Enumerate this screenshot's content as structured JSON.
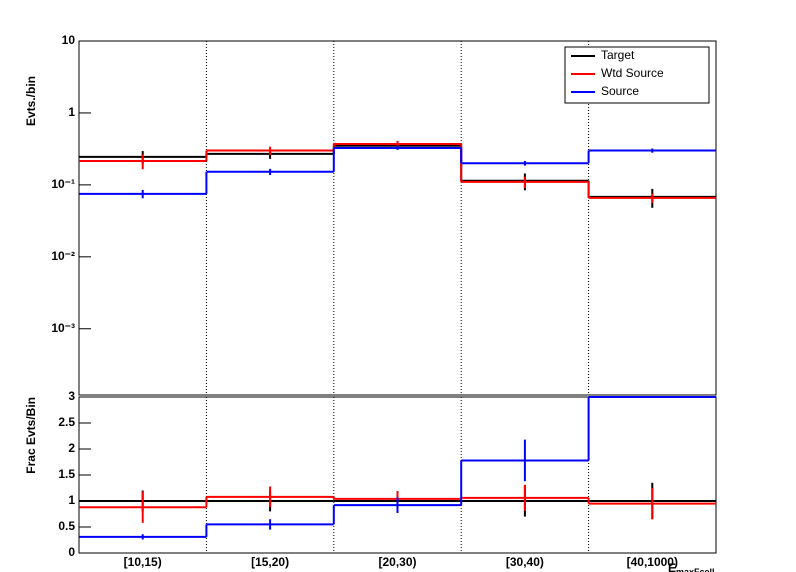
{
  "chart_data": [
    {
      "type": "step",
      "ylabel": "Evts./bin",
      "log": true,
      "ylim": [
        0.00012,
        10
      ],
      "yticks": [
        10,
        1,
        {
          "value": 0.1,
          "label": "10⁻¹"
        },
        {
          "value": 0.01,
          "label": "10⁻²"
        },
        {
          "value": 0.001,
          "label": "10⁻³"
        }
      ],
      "grid_x": true,
      "legend": "top-right",
      "series": [
        {
          "name": "Target",
          "color": "#000000",
          "values": [
            0.245,
            0.27,
            0.35,
            0.114,
            0.068
          ],
          "errors": [
            0.05,
            0.04,
            0.04,
            0.03,
            0.02
          ]
        },
        {
          "name": "Wtd Source",
          "color": "#ff0000",
          "values": [
            0.215,
            0.3,
            0.37,
            0.11,
            0.066
          ],
          "errors": [
            0.05,
            0.04,
            0.04,
            0.02,
            0.01
          ]
        },
        {
          "name": "Source",
          "color": "#0000ff",
          "values": [
            0.075,
            0.152,
            0.326,
            0.2,
            0.3
          ],
          "errors": [
            0.01,
            0.015,
            0.02,
            0.015,
            0.02
          ]
        }
      ]
    },
    {
      "type": "step",
      "ylabel": "Frac Evts/Bin",
      "log": false,
      "ylim": [
        0,
        3
      ],
      "yticks": [
        0,
        0.5,
        1,
        1.5,
        2,
        2.5,
        3
      ],
      "grid_x": true,
      "categories": [
        "[10,15)",
        "[15,20)",
        "[20,30)",
        "[30,40)",
        "[40,1000)"
      ],
      "xlabel": "E",
      "xlabel_sub": "maxFcell",
      "series": [
        {
          "name": "Target",
          "color": "#000000",
          "values": [
            1,
            1,
            1,
            1,
            1
          ],
          "errors": [
            0.2,
            0.2,
            0.15,
            0.3,
            0.35
          ]
        },
        {
          "name": "Wtd Source",
          "color": "#ff0000",
          "values": [
            0.88,
            1.08,
            1.04,
            1.06,
            0.95
          ],
          "errors": [
            0.3,
            0.2,
            0.15,
            0.25,
            0.3
          ]
        },
        {
          "name": "Source",
          "color": "#0000ff",
          "values": [
            0.31,
            0.55,
            0.92,
            1.78,
            3
          ],
          "errors": [
            0.05,
            0.1,
            0.15,
            0.4,
            0
          ]
        }
      ]
    }
  ]
}
